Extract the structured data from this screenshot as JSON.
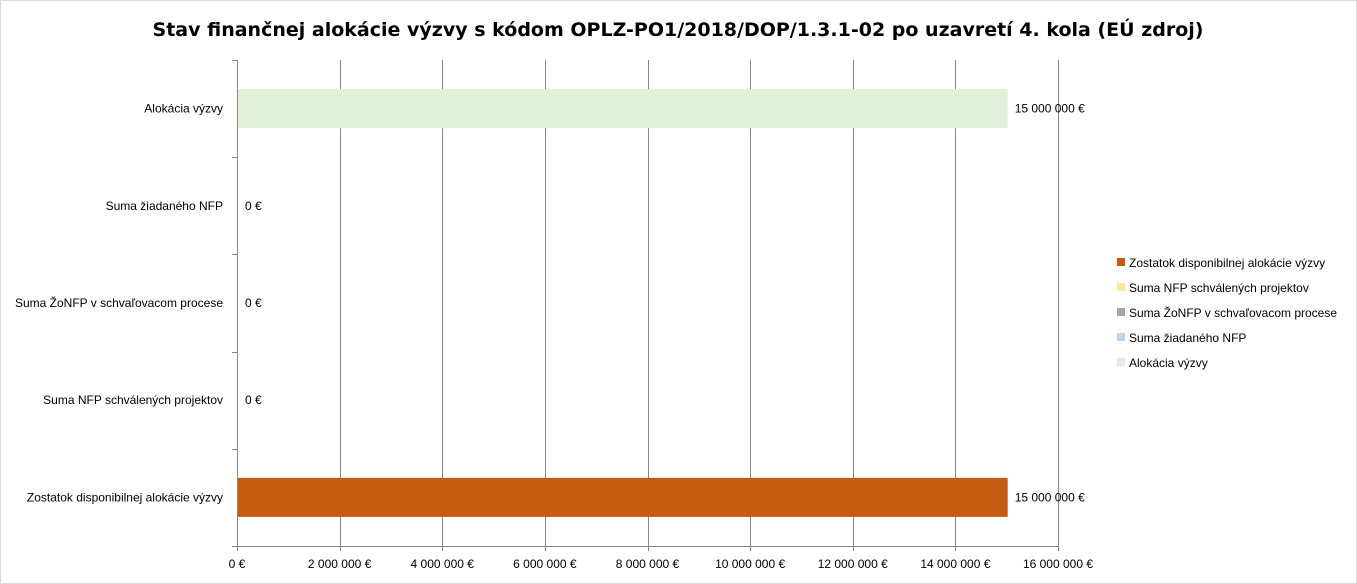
{
  "chart_data": {
    "type": "bar",
    "orientation": "horizontal",
    "title": "Stav finančnej alokácie výzvy s kódom OPLZ-PO1/2018/DOP/1.3.1-02 po uzavretí 4. kola (EÚ zdroj)",
    "categories": [
      "Alokácia výzvy",
      "Suma žiadaného NFP",
      "Suma ŽoNFP v schvaľovacom procese",
      "Suma NFP schválených projektov",
      "Zostatok disponibilnej alokácie výzvy"
    ],
    "values": [
      15000000,
      0,
      0,
      0,
      15000000
    ],
    "data_labels": [
      "15 000 000 €",
      "0 €",
      "0 €",
      "0 €",
      "15 000 000 €"
    ],
    "colors": [
      "#e2efd9",
      "#bdd7ee",
      "#a5a5a5",
      "#ffe699",
      "#c55a11"
    ],
    "xlim": [
      0,
      16000000
    ],
    "x_ticks": [
      0,
      2000000,
      4000000,
      6000000,
      8000000,
      10000000,
      12000000,
      14000000,
      16000000
    ],
    "x_tick_labels": [
      "0 €",
      "2 000 000 €",
      "4 000 000 €",
      "6 000 000 €",
      "8 000 000 €",
      "10 000 000 €",
      "12 000 000 €",
      "14 000 000 €",
      "16 000 000 €"
    ],
    "grid": "vertical",
    "legend_position": "right",
    "legend": [
      {
        "label": "Zostatok disponibilnej alokácie výzvy",
        "color": "#c55a11"
      },
      {
        "label": "Suma NFP schválených projektov",
        "color": "#ffe699"
      },
      {
        "label": "Suma ŽoNFP v schvaľovacom procese",
        "color": "#a5a5a5"
      },
      {
        "label": "Suma žiadaného NFP",
        "color": "#bdd7ee"
      },
      {
        "label": "Alokácia výzvy",
        "color": "#e2efd9"
      }
    ]
  }
}
